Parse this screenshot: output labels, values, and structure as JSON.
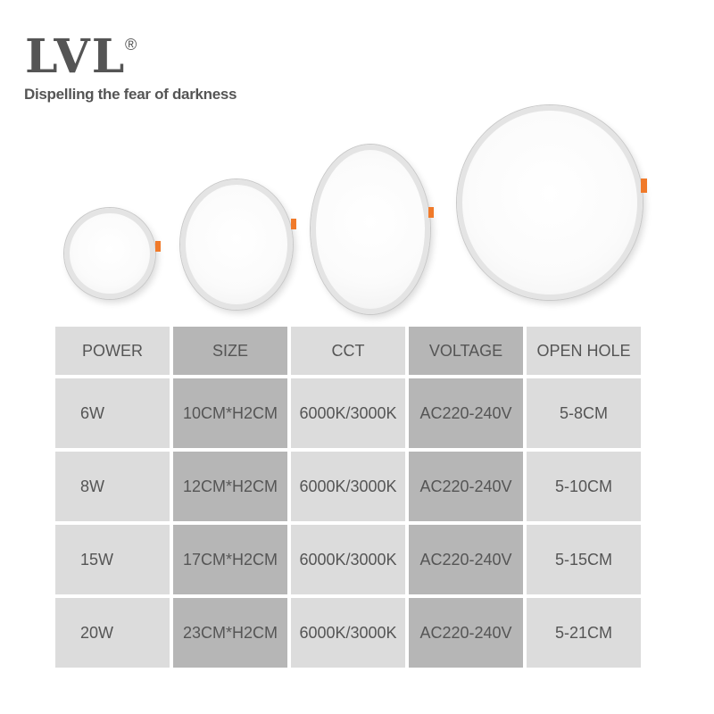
{
  "brand": {
    "logo": "LVL",
    "registered": "®",
    "tagline": "Dispelling the fear of darkness"
  },
  "colors": {
    "light_cell": "#dcdcdc",
    "dark_cell": "#b6b6b6",
    "clip": "#f07a2a",
    "text": "#555555"
  },
  "table": {
    "headers": [
      "POWER",
      "SIZE",
      "CCT",
      "VOLTAGE",
      "OPEN HOLE"
    ],
    "rows": [
      [
        "6W",
        "10CM*H2CM",
        "6000K/3000K",
        "AC220-240V",
        "5-8CM"
      ],
      [
        "8W",
        "12CM*H2CM",
        "6000K/3000K",
        "AC220-240V",
        "5-10CM"
      ],
      [
        "15W",
        "17CM*H2CM",
        "6000K/3000K",
        "AC220-240V",
        "5-15CM"
      ],
      [
        "20W",
        "23CM*H2CM",
        "6000K/3000K",
        "AC220-240V",
        "5-21CM"
      ]
    ]
  }
}
